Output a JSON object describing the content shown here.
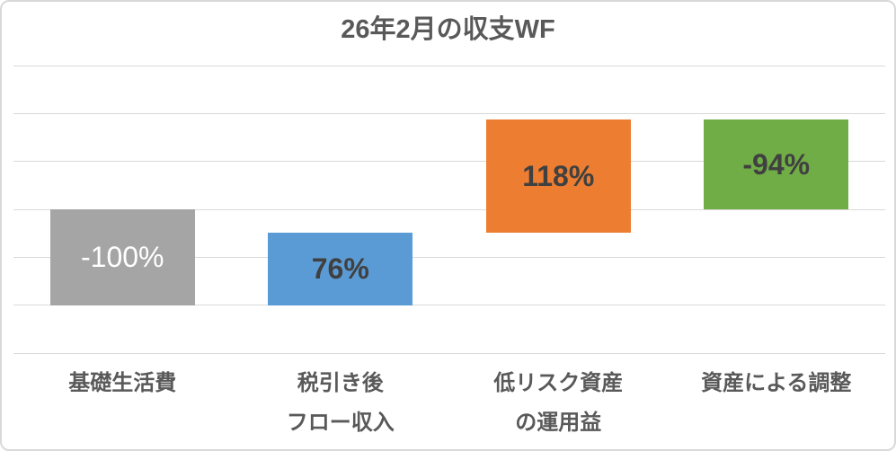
{
  "chart_data": {
    "type": "waterfall",
    "title": "26年2月の収支WF",
    "categories": [
      "基礎生活費",
      "税引き後\nフロー収入",
      "低リスク資産\nの運用益",
      "資産による調整"
    ],
    "values": [
      -100,
      76,
      118,
      -94
    ],
    "data_labels": [
      "-100%",
      "76%",
      "118%",
      "-94%"
    ],
    "bar_colors": [
      "#a5a5a5",
      "#5b9bd5",
      "#ed7d31",
      "#70ad47"
    ],
    "label_colors": [
      "#ffffff",
      "#404040",
      "#404040",
      "#404040"
    ],
    "label_bold": [
      false,
      true,
      true,
      true
    ],
    "ylim": [
      -150,
      150
    ],
    "gridline_step": 50,
    "grid_color": "#d9d9d9",
    "title_color": "#595959",
    "axis_label_color": "#595959",
    "legend": "none",
    "y_axis_labels_visible": false
  }
}
